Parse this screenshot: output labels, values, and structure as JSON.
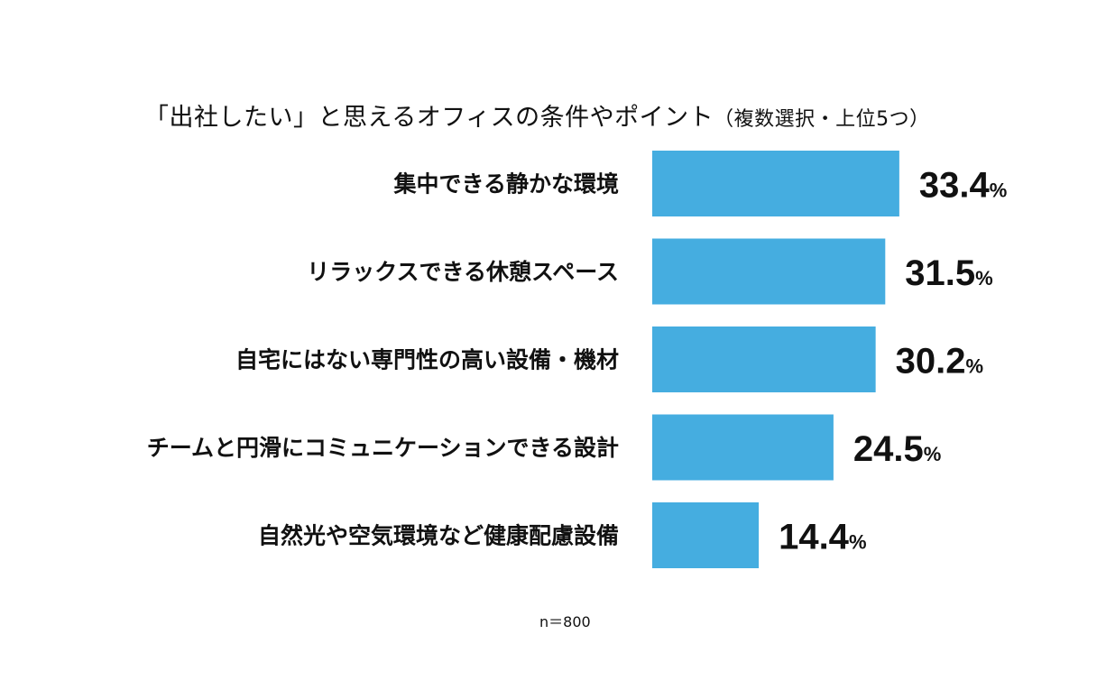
{
  "chart_data": {
    "type": "bar",
    "orientation": "horizontal",
    "title": "「出社したい」と思えるオフィスの条件やポイント",
    "subtitle": "（複数選択・上位5つ）",
    "categories": [
      "集中できる静かな環境",
      "リラックスできる休憩スペース",
      "自宅にはない専門性の高い設備・機材",
      "チームと円滑にコミュニケーションできる設計",
      "自然光や空気環境など健康配慮設備"
    ],
    "values": [
      33.4,
      31.5,
      30.2,
      24.5,
      14.4
    ],
    "value_suffix": "%",
    "value_labels": [
      "33.4",
      "31.5",
      "30.2",
      "24.5",
      "14.4"
    ],
    "bar_color": "#45ADE0",
    "grid": false,
    "axes_visible": false,
    "footnote": "n＝800"
  }
}
